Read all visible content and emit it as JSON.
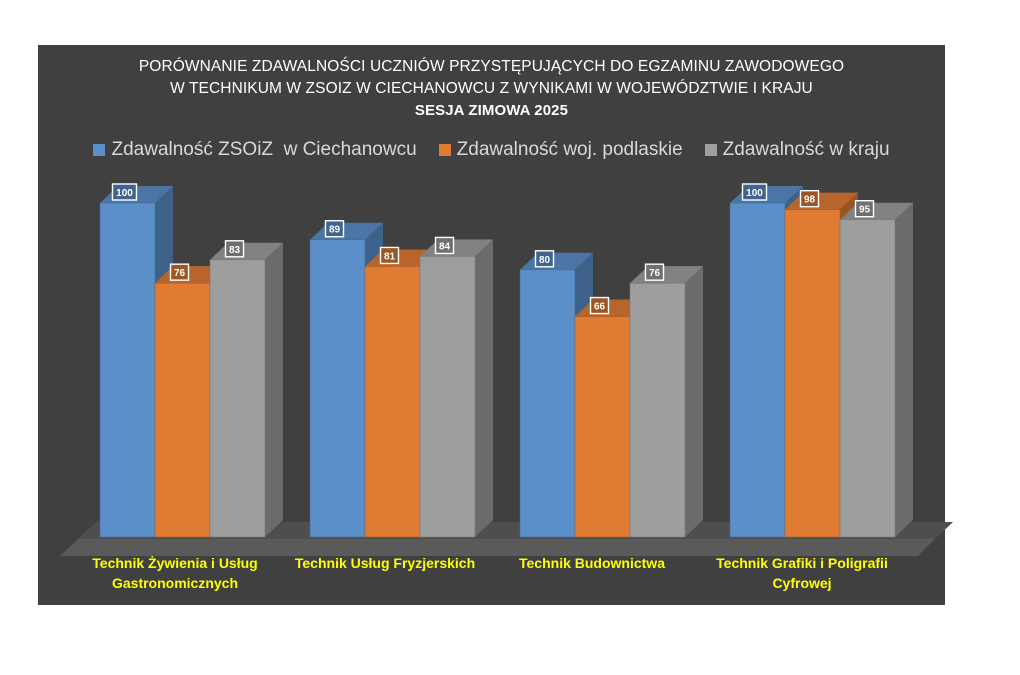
{
  "chart_data": {
    "type": "bar",
    "title_lines": [
      "PORÓWNANIE ZDAWALNOŚCI UCZNIÓW PRZYSTĘPUJĄCYCH DO EGZAMINU ZAWODOWEGO",
      "W TECHNIKUM W ZSOIZ W CIECHANOWCU Z WYNIKAMI W WOJEWÓDZTWIE I KRAJU",
      "SESJA ZIMOWA 2025"
    ],
    "categories": [
      "Technik Żywienia i Usług Gastronomicznych",
      "Technik Usług Fryzjerskich",
      "Technik Budownictwa",
      "Technik Grafiki i Poligrafii Cyfrowej"
    ],
    "series": [
      {
        "name": "Zdawalność ZSOiZ  w Ciechanowcu",
        "values": [
          100,
          89,
          80,
          100
        ],
        "color": "#5b8fc9"
      },
      {
        "name": "Zdawalność woj. podlaskie",
        "values": [
          76,
          81,
          66,
          98
        ],
        "color": "#e07b34"
      },
      {
        "name": "Zdawalność w kraju",
        "values": [
          83,
          84,
          76,
          95
        ],
        "color": "#9e9e9e"
      }
    ],
    "ylim": [
      0,
      100
    ],
    "grid": false,
    "legend_position": "top",
    "style": "3d-columns",
    "background": "#404040",
    "category_label_color": "#ffff00"
  }
}
